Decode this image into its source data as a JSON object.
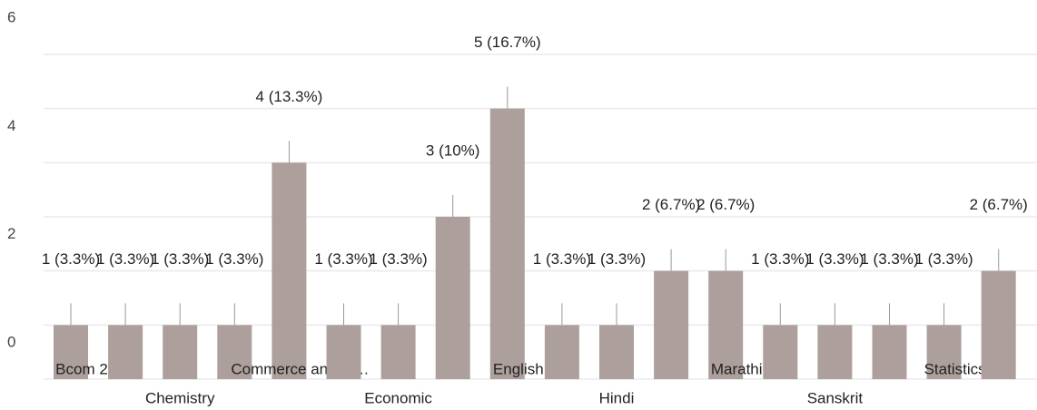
{
  "chart_data": {
    "type": "bar",
    "categories": [
      "Bcom 2",
      null,
      "Chemistry",
      null,
      "Commerce and M…",
      null,
      "Economic",
      null,
      "English",
      null,
      "Hindi",
      null,
      "Marathi",
      null,
      "Sanskrit",
      null,
      "Statistics",
      null
    ],
    "values": [
      1,
      1,
      1,
      1,
      4,
      1,
      1,
      3,
      5,
      1,
      1,
      2,
      2,
      1,
      1,
      1,
      1,
      2
    ],
    "value_labels": [
      "1 (3.3%)",
      "1 (3.3%)",
      "1 (3.3%)",
      "1 (3.3%)",
      "4 (13.3%)",
      "1 (3.3%)",
      "1 (3.3%)",
      "3 (10%)",
      "5 (16.7%)",
      "1 (3.3%)",
      "1 (3.3%)",
      "2 (6.7%)",
      "2 (6.7%)",
      "1 (3.3%)",
      "1 (3.3%)",
      "1 (3.3%)",
      "1 (3.3%)",
      "2 (6.7%)"
    ],
    "color": "#ad9f9c",
    "ylim": [
      0,
      6
    ],
    "yticks": [
      0,
      2,
      4,
      6
    ],
    "minor_yticks": [
      1,
      3,
      5
    ],
    "grid": true
  }
}
